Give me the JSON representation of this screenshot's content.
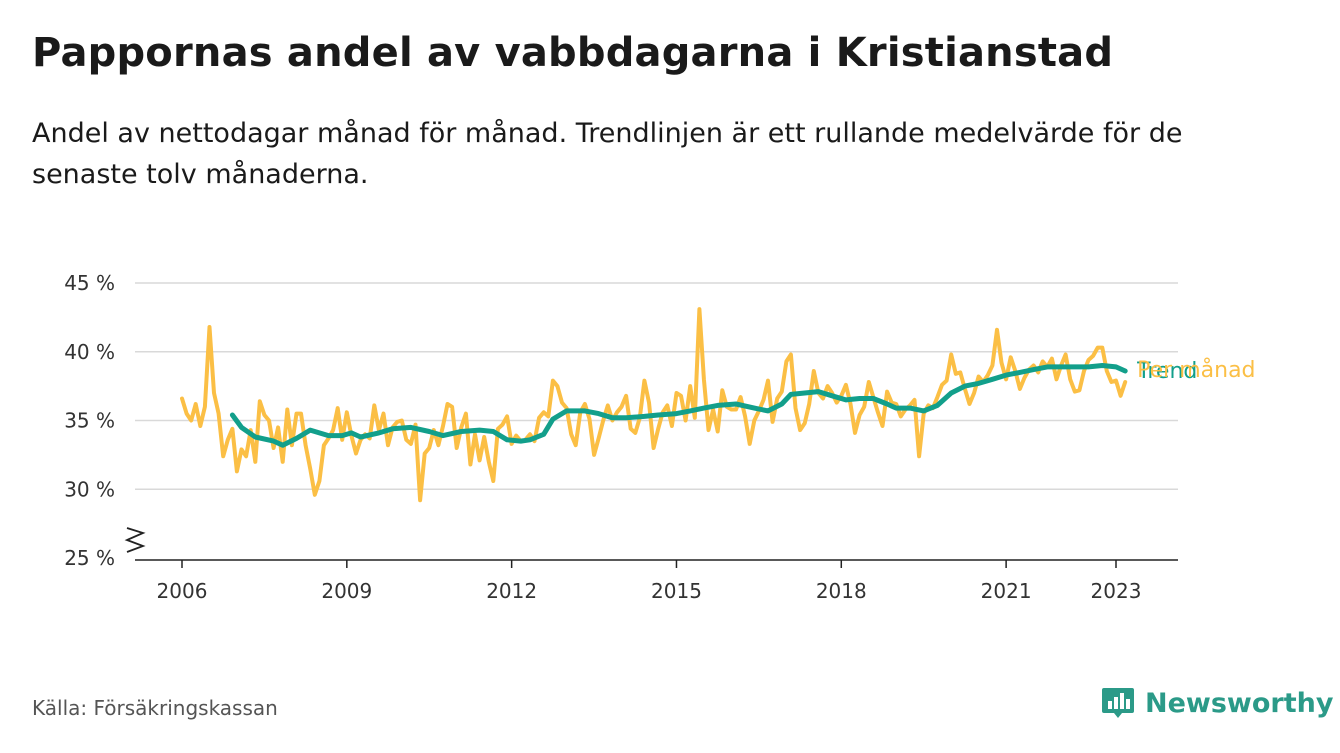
{
  "title": "Pappornas andel av vabbdagarna i Kristianstad",
  "subtitle": "Andel av nettodagar månad för månad. Trendlinjen är ett rullande medelvärde för de senaste tolv månaderna.",
  "source": "Källa: Försäkringskassan",
  "brand": {
    "name": "Newsworthy",
    "icon": "bar-chart-bubble-icon",
    "color": "#2b9a88"
  },
  "chart_data": {
    "type": "line",
    "y_unit": "%",
    "ylim": [
      25,
      45
    ],
    "y_ticks": [
      {
        "value": 25,
        "label": "25 %"
      },
      {
        "value": 30,
        "label": "30 %"
      },
      {
        "value": 35,
        "label": "35 %"
      },
      {
        "value": 40,
        "label": "40 %"
      },
      {
        "value": 45,
        "label": "45 %"
      }
    ],
    "y_axis_break": true,
    "xlim": [
      "2006-01",
      "2023-12"
    ],
    "x_ticks": [
      "2006",
      "2009",
      "2012",
      "2015",
      "2018",
      "2021",
      "2023"
    ],
    "grid": "horizontal",
    "series": [
      {
        "name": "Per månad",
        "color": "#fbbf45",
        "points": [
          [
            "2006-01",
            36.6
          ],
          [
            "2006-02",
            35.5
          ],
          [
            "2006-03",
            35.0
          ],
          [
            "2006-04",
            36.2
          ],
          [
            "2006-05",
            34.6
          ],
          [
            "2006-06",
            36.0
          ],
          [
            "2006-07",
            41.8
          ],
          [
            "2006-08",
            37.0
          ],
          [
            "2006-09",
            35.5
          ],
          [
            "2006-10",
            32.4
          ],
          [
            "2006-11",
            33.6
          ],
          [
            "2006-12",
            34.4
          ],
          [
            "2007-01",
            31.3
          ],
          [
            "2007-02",
            32.9
          ],
          [
            "2007-03",
            32.4
          ],
          [
            "2007-04",
            34.3
          ],
          [
            "2007-05",
            32.0
          ],
          [
            "2007-06",
            36.4
          ],
          [
            "2007-07",
            35.4
          ],
          [
            "2007-08",
            35.0
          ],
          [
            "2007-09",
            33.0
          ],
          [
            "2007-10",
            34.5
          ],
          [
            "2007-11",
            32.0
          ],
          [
            "2007-12",
            35.8
          ],
          [
            "2008-01",
            33.2
          ],
          [
            "2008-02",
            35.5
          ],
          [
            "2008-03",
            35.5
          ],
          [
            "2008-04",
            33.2
          ],
          [
            "2008-05",
            31.5
          ],
          [
            "2008-06",
            29.6
          ],
          [
            "2008-07",
            30.6
          ],
          [
            "2008-08",
            33.2
          ],
          [
            "2008-09",
            33.7
          ],
          [
            "2008-10",
            34.3
          ],
          [
            "2008-11",
            35.9
          ],
          [
            "2008-12",
            33.6
          ],
          [
            "2009-01",
            35.6
          ],
          [
            "2009-02",
            33.9
          ],
          [
            "2009-03",
            32.6
          ],
          [
            "2009-04",
            33.6
          ],
          [
            "2009-05",
            34.0
          ],
          [
            "2009-06",
            33.7
          ],
          [
            "2009-07",
            36.1
          ],
          [
            "2009-08",
            34.3
          ],
          [
            "2009-09",
            35.5
          ],
          [
            "2009-10",
            33.2
          ],
          [
            "2009-11",
            34.5
          ],
          [
            "2009-12",
            34.9
          ],
          [
            "2010-01",
            35.0
          ],
          [
            "2010-02",
            33.6
          ],
          [
            "2010-03",
            33.3
          ],
          [
            "2010-04",
            34.7
          ],
          [
            "2010-05",
            29.2
          ],
          [
            "2010-06",
            32.6
          ],
          [
            "2010-07",
            33.0
          ],
          [
            "2010-08",
            34.3
          ],
          [
            "2010-09",
            33.2
          ],
          [
            "2010-10",
            34.6
          ],
          [
            "2010-11",
            36.2
          ],
          [
            "2010-12",
            36.0
          ],
          [
            "2011-01",
            33.0
          ],
          [
            "2011-02",
            34.5
          ],
          [
            "2011-03",
            35.5
          ],
          [
            "2011-04",
            31.8
          ],
          [
            "2011-05",
            34.0
          ],
          [
            "2011-06",
            32.1
          ],
          [
            "2011-07",
            33.8
          ],
          [
            "2011-08",
            32.0
          ],
          [
            "2011-09",
            30.6
          ],
          [
            "2011-10",
            34.4
          ],
          [
            "2011-11",
            34.7
          ],
          [
            "2011-12",
            35.3
          ],
          [
            "2012-01",
            33.3
          ],
          [
            "2012-02",
            33.9
          ],
          [
            "2012-03",
            33.5
          ],
          [
            "2012-04",
            33.6
          ],
          [
            "2012-05",
            34.0
          ],
          [
            "2012-06",
            33.5
          ],
          [
            "2012-07",
            35.2
          ],
          [
            "2012-08",
            35.6
          ],
          [
            "2012-09",
            35.3
          ],
          [
            "2012-10",
            37.9
          ],
          [
            "2012-11",
            37.5
          ],
          [
            "2012-12",
            36.3
          ],
          [
            "2013-01",
            35.9
          ],
          [
            "2013-02",
            34.0
          ],
          [
            "2013-03",
            33.2
          ],
          [
            "2013-04",
            35.6
          ],
          [
            "2013-05",
            36.2
          ],
          [
            "2013-06",
            35.1
          ],
          [
            "2013-07",
            32.5
          ],
          [
            "2013-08",
            33.7
          ],
          [
            "2013-09",
            35.0
          ],
          [
            "2013-10",
            36.1
          ],
          [
            "2013-11",
            35.0
          ],
          [
            "2013-12",
            35.6
          ],
          [
            "2014-01",
            36.0
          ],
          [
            "2014-02",
            36.8
          ],
          [
            "2014-03",
            34.4
          ],
          [
            "2014-04",
            34.1
          ],
          [
            "2014-05",
            35.2
          ],
          [
            "2014-06",
            37.9
          ],
          [
            "2014-07",
            36.3
          ],
          [
            "2014-08",
            33.0
          ],
          [
            "2014-09",
            34.4
          ],
          [
            "2014-10",
            35.6
          ],
          [
            "2014-11",
            36.1
          ],
          [
            "2014-12",
            34.6
          ],
          [
            "2015-01",
            37.0
          ],
          [
            "2015-02",
            36.8
          ],
          [
            "2015-03",
            35.0
          ],
          [
            "2015-04",
            37.5
          ],
          [
            "2015-05",
            35.2
          ],
          [
            "2015-06",
            43.1
          ],
          [
            "2015-07",
            38.0
          ],
          [
            "2015-08",
            34.3
          ],
          [
            "2015-09",
            35.8
          ],
          [
            "2015-10",
            34.2
          ],
          [
            "2015-11",
            37.2
          ],
          [
            "2015-12",
            36.0
          ],
          [
            "2016-01",
            35.8
          ],
          [
            "2016-02",
            35.8
          ],
          [
            "2016-03",
            36.7
          ],
          [
            "2016-04",
            35.3
          ],
          [
            "2016-05",
            33.3
          ],
          [
            "2016-06",
            35.0
          ],
          [
            "2016-07",
            35.7
          ],
          [
            "2016-08",
            36.5
          ],
          [
            "2016-09",
            37.9
          ],
          [
            "2016-10",
            34.9
          ],
          [
            "2016-11",
            36.6
          ],
          [
            "2016-12",
            37.1
          ],
          [
            "2017-01",
            39.3
          ],
          [
            "2017-02",
            39.8
          ],
          [
            "2017-03",
            35.9
          ],
          [
            "2017-04",
            34.3
          ],
          [
            "2017-05",
            34.8
          ],
          [
            "2017-06",
            36.2
          ],
          [
            "2017-07",
            38.6
          ],
          [
            "2017-08",
            37.0
          ],
          [
            "2017-09",
            36.6
          ],
          [
            "2017-10",
            37.5
          ],
          [
            "2017-11",
            37.0
          ],
          [
            "2017-12",
            36.3
          ],
          [
            "2018-01",
            36.8
          ],
          [
            "2018-02",
            37.6
          ],
          [
            "2018-03",
            36.2
          ],
          [
            "2018-04",
            34.1
          ],
          [
            "2018-05",
            35.4
          ],
          [
            "2018-06",
            36.0
          ],
          [
            "2018-07",
            37.8
          ],
          [
            "2018-08",
            36.7
          ],
          [
            "2018-09",
            35.6
          ],
          [
            "2018-10",
            34.6
          ],
          [
            "2018-11",
            37.1
          ],
          [
            "2018-12",
            36.3
          ],
          [
            "2019-01",
            36.2
          ],
          [
            "2019-02",
            35.3
          ],
          [
            "2019-03",
            35.8
          ],
          [
            "2019-04",
            36.1
          ],
          [
            "2019-05",
            36.5
          ],
          [
            "2019-06",
            32.4
          ],
          [
            "2019-07",
            35.5
          ],
          [
            "2019-08",
            36.1
          ],
          [
            "2019-09",
            35.9
          ],
          [
            "2019-10",
            36.7
          ],
          [
            "2019-11",
            37.6
          ],
          [
            "2019-12",
            37.9
          ],
          [
            "2020-01",
            39.8
          ],
          [
            "2020-02",
            38.4
          ],
          [
            "2020-03",
            38.5
          ],
          [
            "2020-04",
            37.3
          ],
          [
            "2020-05",
            36.2
          ],
          [
            "2020-06",
            37.0
          ],
          [
            "2020-07",
            38.2
          ],
          [
            "2020-08",
            37.8
          ],
          [
            "2020-09",
            38.3
          ],
          [
            "2020-10",
            39.0
          ],
          [
            "2020-11",
            41.6
          ],
          [
            "2020-12",
            39.2
          ],
          [
            "2021-01",
            38.0
          ],
          [
            "2021-02",
            39.6
          ],
          [
            "2021-03",
            38.6
          ],
          [
            "2021-04",
            37.3
          ],
          [
            "2021-05",
            38.1
          ],
          [
            "2021-06",
            38.7
          ],
          [
            "2021-07",
            39.0
          ],
          [
            "2021-08",
            38.5
          ],
          [
            "2021-09",
            39.3
          ],
          [
            "2021-10",
            38.9
          ],
          [
            "2021-11",
            39.5
          ],
          [
            "2021-12",
            38.0
          ],
          [
            "2022-01",
            39.0
          ],
          [
            "2022-02",
            39.8
          ],
          [
            "2022-03",
            38.0
          ],
          [
            "2022-04",
            37.1
          ],
          [
            "2022-05",
            37.2
          ],
          [
            "2022-06",
            38.6
          ],
          [
            "2022-07",
            39.4
          ],
          [
            "2022-08",
            39.7
          ],
          [
            "2022-09",
            40.3
          ],
          [
            "2022-10",
            40.3
          ],
          [
            "2022-11",
            38.6
          ],
          [
            "2022-12",
            37.8
          ],
          [
            "2023-01",
            37.9
          ],
          [
            "2023-02",
            36.8
          ],
          [
            "2023-03",
            37.8
          ]
        ]
      },
      {
        "name": "Trend",
        "color": "#129f8b",
        "points": [
          [
            "2006-12",
            35.4
          ],
          [
            "2007-02",
            34.5
          ],
          [
            "2007-05",
            33.8
          ],
          [
            "2007-09",
            33.5
          ],
          [
            "2007-11",
            33.2
          ],
          [
            "2008-02",
            33.7
          ],
          [
            "2008-05",
            34.3
          ],
          [
            "2008-09",
            33.9
          ],
          [
            "2008-12",
            33.9
          ],
          [
            "2009-02",
            34.1
          ],
          [
            "2009-04",
            33.8
          ],
          [
            "2009-08",
            34.1
          ],
          [
            "2009-11",
            34.4
          ],
          [
            "2010-03",
            34.5
          ],
          [
            "2010-07",
            34.2
          ],
          [
            "2010-10",
            33.9
          ],
          [
            "2011-02",
            34.2
          ],
          [
            "2011-06",
            34.3
          ],
          [
            "2011-09",
            34.2
          ],
          [
            "2011-12",
            33.6
          ],
          [
            "2012-03",
            33.5
          ],
          [
            "2012-05",
            33.6
          ],
          [
            "2012-08",
            34.0
          ],
          [
            "2012-10",
            35.1
          ],
          [
            "2013-01",
            35.7
          ],
          [
            "2013-05",
            35.7
          ],
          [
            "2013-08",
            35.5
          ],
          [
            "2013-11",
            35.2
          ],
          [
            "2014-02",
            35.2
          ],
          [
            "2014-06",
            35.3
          ],
          [
            "2014-09",
            35.4
          ],
          [
            "2015-01",
            35.5
          ],
          [
            "2015-04",
            35.7
          ],
          [
            "2015-07",
            35.9
          ],
          [
            "2015-10",
            36.1
          ],
          [
            "2016-02",
            36.2
          ],
          [
            "2016-06",
            35.9
          ],
          [
            "2016-09",
            35.7
          ],
          [
            "2016-12",
            36.2
          ],
          [
            "2017-02",
            36.9
          ],
          [
            "2017-05",
            37.0
          ],
          [
            "2017-08",
            37.1
          ],
          [
            "2017-11",
            36.8
          ],
          [
            "2018-02",
            36.5
          ],
          [
            "2018-05",
            36.6
          ],
          [
            "2018-08",
            36.6
          ],
          [
            "2018-11",
            36.2
          ],
          [
            "2019-01",
            35.9
          ],
          [
            "2019-04",
            35.9
          ],
          [
            "2019-07",
            35.7
          ],
          [
            "2019-10",
            36.1
          ],
          [
            "2020-01",
            37.0
          ],
          [
            "2020-04",
            37.5
          ],
          [
            "2020-07",
            37.7
          ],
          [
            "2020-10",
            38.0
          ],
          [
            "2021-01",
            38.3
          ],
          [
            "2021-04",
            38.5
          ],
          [
            "2021-07",
            38.7
          ],
          [
            "2021-10",
            38.9
          ],
          [
            "2022-01",
            38.9
          ],
          [
            "2022-04",
            38.9
          ],
          [
            "2022-07",
            38.9
          ],
          [
            "2022-10",
            39.0
          ],
          [
            "2023-01",
            38.9
          ],
          [
            "2023-03",
            38.6
          ]
        ]
      }
    ]
  }
}
